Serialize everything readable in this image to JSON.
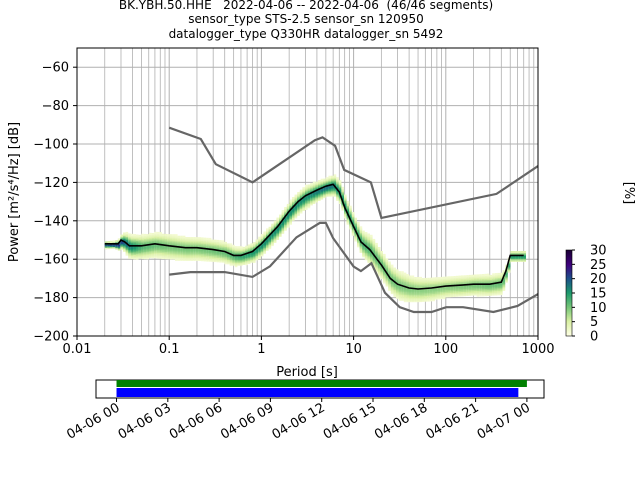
{
  "title_lines": [
    "BK.YBH.50.HHE   2022-04-06 -- 2022-04-06  (46/46 segments)",
    "sensor_type STS-2.5 sensor_sn 120950",
    "datalogger_type Q330HR datalogger_sn 5492"
  ],
  "colors": {
    "noise_models": "#666666",
    "mean_curve": "#000000",
    "grid": "#b0b0b0",
    "colormap": [
      "#ffffe5",
      "#d9f0a3",
      "#78c679",
      "#1d9a6c",
      "#1d4e89",
      "#3f007d",
      "#1a0033"
    ],
    "availability_green": "#008000",
    "availability_blue": "#0000ff"
  },
  "chart_data": [
    {
      "type": "heatmap",
      "xlabel": "Period [s]",
      "ylabel": "Power [m²/s⁴/Hz] [dB]",
      "x_scale": "log",
      "xlim": [
        0.01,
        1000
      ],
      "ylim": [
        -200,
        -50
      ],
      "x_ticks": [
        0.01,
        0.1,
        1,
        10,
        100,
        1000
      ],
      "x_tick_labels": [
        "0.01",
        "0.1",
        "1",
        "10",
        "100",
        "1000"
      ],
      "y_ticks": [
        -200,
        -180,
        -160,
        -140,
        -120,
        -100,
        -80,
        -60
      ],
      "y_tick_labels": [
        "−200",
        "−180",
        "−160",
        "−140",
        "−120",
        "−100",
        "−80",
        "−60"
      ],
      "grid": true,
      "colorbar": {
        "label": "[%]",
        "range": [
          0,
          30
        ],
        "ticks": [
          0,
          5,
          10,
          15,
          20,
          25,
          30
        ],
        "tick_labels": [
          "0",
          "5",
          "10",
          "15",
          "20",
          "25",
          "30"
        ]
      },
      "mean_curve": {
        "period": [
          0.02,
          0.028,
          0.03,
          0.033,
          0.037,
          0.05,
          0.07,
          0.1,
          0.15,
          0.2,
          0.3,
          0.4,
          0.5,
          0.6,
          0.8,
          1.0,
          1.5,
          2.0,
          2.5,
          3.0,
          4.0,
          5.0,
          6.0,
          7.0,
          8.0,
          10.0,
          12.0,
          15.0,
          20.0,
          25.0,
          30.0,
          40.0,
          50.0,
          70.0,
          100.0,
          150.0,
          200.0,
          300.0,
          400.0,
          450.0,
          500.0,
          700.0
        ],
        "power_db": [
          -152,
          -152,
          -150,
          -151,
          -153,
          -153,
          -152,
          -153,
          -154,
          -154,
          -155,
          -156,
          -158,
          -158,
          -156,
          -152,
          -143,
          -135,
          -130,
          -127,
          -124,
          -122,
          -121,
          -125,
          -133,
          -143,
          -151,
          -155,
          -163,
          -170,
          -173,
          -175,
          -175.5,
          -175,
          -174,
          -173.5,
          -173,
          -173,
          -172,
          -166,
          -158,
          -158
        ]
      },
      "noise_model_high": {
        "period": [
          0.1,
          0.22,
          0.32,
          0.8,
          3.8,
          4.6,
          6.3,
          7.9,
          15.4,
          20.0,
          354.8,
          1000.0
        ],
        "power_db": [
          -91.5,
          -97.4,
          -110.5,
          -120.0,
          -98.0,
          -96.5,
          -101.0,
          -113.5,
          -120.0,
          -138.5,
          -126.0,
          -111.5
        ]
      },
      "noise_model_low": {
        "period": [
          0.1,
          0.17,
          0.4,
          0.8,
          1.24,
          2.4,
          4.3,
          5.0,
          6.0,
          10.0,
          12.0,
          15.6,
          21.9,
          31.6,
          45.0,
          70.0,
          101.0,
          154.0,
          328.0,
          600.0,
          1000.0
        ],
        "power_db": [
          -168.0,
          -166.7,
          -166.7,
          -169.2,
          -163.7,
          -148.6,
          -141.1,
          -141.1,
          -149.0,
          -163.8,
          -166.2,
          -162.1,
          -177.5,
          -185.0,
          -187.5,
          -187.5,
          -185.0,
          -185.0,
          -187.5,
          -184.4,
          -178.2
        ]
      },
      "spread": [
        {
          "period": 0.02,
          "lo": -152,
          "hi": -152,
          "prob": 20
        },
        {
          "period": 0.028,
          "lo": -155,
          "hi": -150,
          "prob": 22
        },
        {
          "period": 0.035,
          "lo": -159,
          "hi": -149,
          "prob": 18
        },
        {
          "period": 0.05,
          "lo": -160,
          "hi": -149,
          "prob": 12
        },
        {
          "period": 0.1,
          "lo": -161,
          "hi": -149,
          "prob": 10
        },
        {
          "period": 0.2,
          "lo": -161,
          "hi": -150,
          "prob": 10
        },
        {
          "period": 0.4,
          "lo": -162,
          "hi": -152,
          "prob": 11
        },
        {
          "period": 0.6,
          "lo": -162,
          "hi": -154,
          "prob": 14
        },
        {
          "period": 1.0,
          "lo": -157,
          "hi": -148,
          "prob": 16
        },
        {
          "period": 2.0,
          "lo": -140,
          "hi": -130,
          "prob": 16
        },
        {
          "period": 3.0,
          "lo": -132,
          "hi": -122,
          "prob": 16
        },
        {
          "period": 5.0,
          "lo": -126,
          "hi": -118,
          "prob": 18
        },
        {
          "period": 7.0,
          "lo": -130,
          "hi": -120,
          "prob": 16
        },
        {
          "period": 10.0,
          "lo": -148,
          "hi": -138,
          "prob": 14
        },
        {
          "period": 15.0,
          "lo": -162,
          "hi": -148,
          "prob": 12
        },
        {
          "period": 20.0,
          "lo": -168,
          "hi": -155,
          "prob": 11
        },
        {
          "period": 30.0,
          "lo": -178,
          "hi": -164,
          "prob": 10
        },
        {
          "period": 50.0,
          "lo": -178,
          "hi": -166,
          "prob": 9
        },
        {
          "period": 100.0,
          "lo": -177,
          "hi": -167,
          "prob": 9
        },
        {
          "period": 200.0,
          "lo": -176,
          "hi": -166,
          "prob": 10
        },
        {
          "period": 400.0,
          "lo": -175,
          "hi": -165,
          "prob": 11
        },
        {
          "period": 500.0,
          "lo": -160,
          "hi": -155,
          "prob": 15
        },
        {
          "period": 700.0,
          "lo": -160,
          "hi": -155,
          "prob": 15
        }
      ]
    },
    {
      "type": "bar",
      "x_tick_labels": [
        "04-06 00",
        "04-06 03",
        "04-06 06",
        "04-06 09",
        "04-06 12",
        "04-06 15",
        "04-06 18",
        "04-06 21",
        "04-07 00"
      ],
      "x_range_hours": [
        -1.2,
        25.0
      ],
      "series": [
        {
          "color": "green",
          "start_hour": 0,
          "end_hour": 24.0
        },
        {
          "color": "blue",
          "start_hour": 0,
          "end_hour": 23.5
        }
      ]
    }
  ]
}
